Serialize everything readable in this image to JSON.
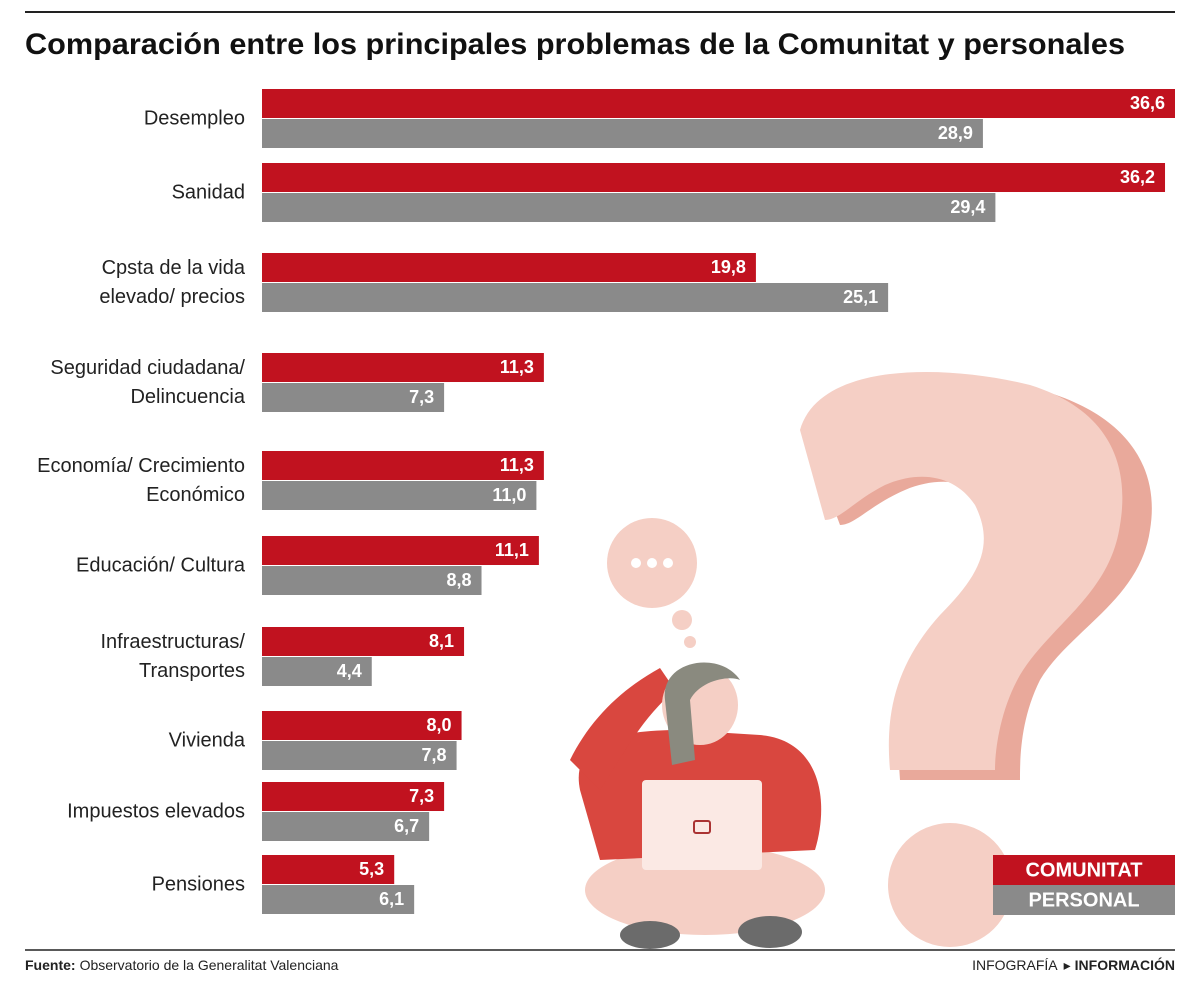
{
  "chart_data": {
    "type": "bar",
    "orientation": "horizontal",
    "title": "Comparación entre los principales problemas de la Comunitat y personales",
    "categories": [
      [
        "Desempleo"
      ],
      [
        "Sanidad"
      ],
      [
        "Cpsta de la vida",
        "elevado/ precios"
      ],
      [
        "Seguridad ciudadana/",
        "Delincuencia"
      ],
      [
        "Economía/ Crecimiento",
        "Económico"
      ],
      [
        "Educación/ Cultura"
      ],
      [
        "Infraestructuras/",
        "Transportes"
      ],
      [
        "Vivienda"
      ],
      [
        "Impuestos elevados"
      ],
      [
        "Pensiones"
      ]
    ],
    "series": [
      {
        "name": "COMUNITAT",
        "color": "#c1121f",
        "values": [
          36.6,
          36.2,
          19.8,
          11.3,
          11.3,
          11.1,
          8.1,
          8.0,
          7.3,
          5.3
        ],
        "value_labels": [
          "36,6",
          "36,2",
          "19,8",
          "11,3",
          "11,3",
          "11,1",
          "8,1",
          "8,0",
          "7,3",
          "5,3"
        ]
      },
      {
        "name": "PERSONAL",
        "color": "#8a8a8a",
        "values": [
          28.9,
          29.4,
          25.1,
          7.3,
          11.0,
          8.8,
          4.4,
          7.8,
          6.7,
          6.1
        ],
        "value_labels": [
          "28,9",
          "29,4",
          "25,1",
          "7,3",
          "11,0",
          "8,8",
          "4,4",
          "7,8",
          "6,7",
          "6,1"
        ]
      }
    ],
    "legend": "bottom-right",
    "source": {
      "label": "Fuente:",
      "text": "Observatorio de la Generalitat Valenciana"
    },
    "credit": [
      "INFOGRAFÍA",
      "INFORMACIÓN"
    ]
  }
}
